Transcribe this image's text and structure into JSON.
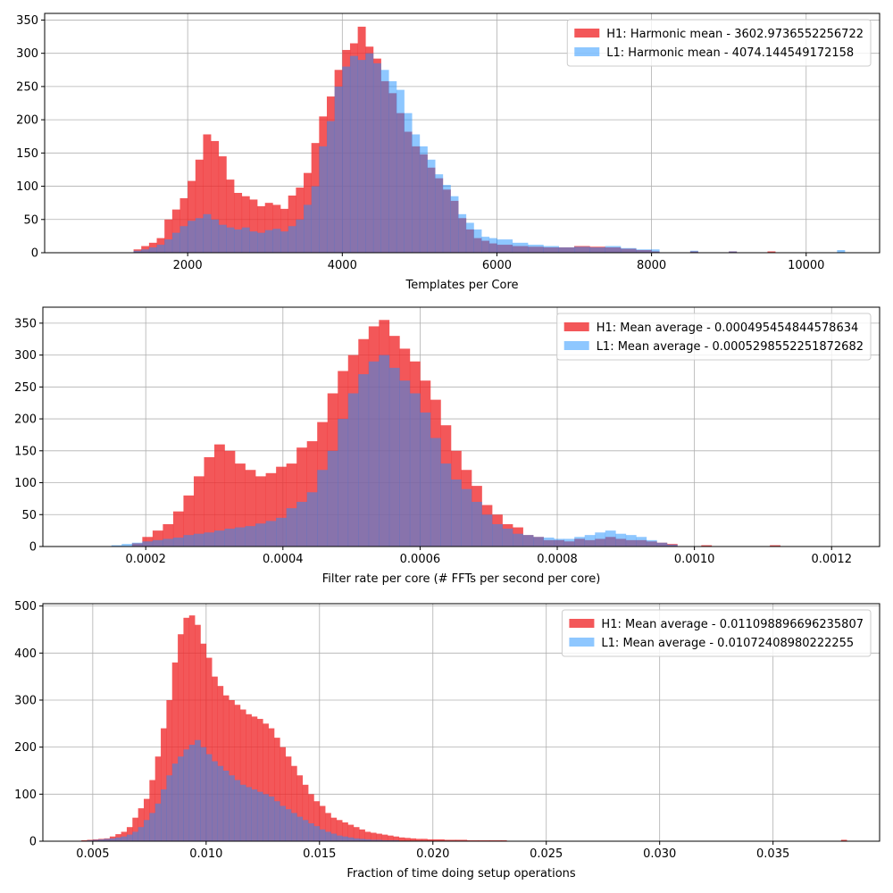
{
  "chart_data": [
    {
      "type": "bar",
      "xlabel": "Templates per Core",
      "ylabel": "",
      "xlim": [
        150,
        10950
      ],
      "ylim": [
        0,
        360
      ],
      "xticks": [
        2000,
        4000,
        6000,
        8000,
        10000
      ],
      "yticks": [
        0,
        50,
        100,
        150,
        200,
        250,
        300,
        350
      ],
      "xtick_labels": [
        "2000",
        "4000",
        "6000",
        "8000",
        "10000"
      ],
      "ytick_labels": [
        "0",
        "50",
        "100",
        "150",
        "200",
        "250",
        "300",
        "350"
      ],
      "grid": true,
      "legend_position": "top-right",
      "series": [
        {
          "name": "H1: Harmonic mean  - 3602.9736552256722",
          "color": "#f0282a",
          "alpha": 0.78,
          "x": [
            1300,
            1400,
            1500,
            1600,
            1700,
            1800,
            1900,
            2000,
            2100,
            2200,
            2300,
            2400,
            2500,
            2600,
            2700,
            2800,
            2900,
            3000,
            3100,
            3200,
            3300,
            3400,
            3500,
            3600,
            3700,
            3800,
            3900,
            4000,
            4100,
            4200,
            4300,
            4400,
            4500,
            4600,
            4700,
            4800,
            4900,
            5000,
            5100,
            5200,
            5300,
            5400,
            5500,
            5600,
            5700,
            5800,
            5900,
            6000,
            6200,
            6400,
            6600,
            6800,
            7000,
            7200,
            7400,
            7600,
            7800,
            8000,
            8500,
            9000,
            9500
          ],
          "values": [
            5,
            10,
            15,
            22,
            50,
            65,
            82,
            108,
            140,
            178,
            168,
            145,
            110,
            90,
            85,
            80,
            70,
            75,
            72,
            66,
            86,
            98,
            120,
            165,
            205,
            235,
            275,
            305,
            315,
            340,
            310,
            292,
            258,
            240,
            210,
            182,
            160,
            148,
            128,
            112,
            95,
            78,
            52,
            35,
            22,
            18,
            14,
            12,
            10,
            9,
            8,
            8,
            10,
            9,
            8,
            6,
            4,
            2,
            2,
            2,
            2
          ]
        },
        {
          "name": "L1: Harmonic mean  - 4074.144549172158",
          "color": "#1e90ff",
          "alpha": 0.5,
          "x": [
            1300,
            1400,
            1500,
            1600,
            1700,
            1800,
            1900,
            2000,
            2100,
            2200,
            2300,
            2400,
            2500,
            2600,
            2700,
            2800,
            2900,
            3000,
            3100,
            3200,
            3300,
            3400,
            3500,
            3600,
            3700,
            3800,
            3900,
            4000,
            4100,
            4200,
            4300,
            4400,
            4500,
            4600,
            4700,
            4800,
            4900,
            5000,
            5100,
            5200,
            5300,
            5400,
            5500,
            5600,
            5700,
            5800,
            5900,
            6000,
            6200,
            6400,
            6600,
            6800,
            7000,
            7200,
            7400,
            7600,
            7800,
            8000,
            8500,
            9000,
            10400
          ],
          "values": [
            3,
            5,
            8,
            12,
            20,
            30,
            40,
            48,
            52,
            58,
            50,
            42,
            38,
            35,
            38,
            32,
            30,
            34,
            36,
            32,
            40,
            50,
            72,
            100,
            160,
            198,
            250,
            280,
            296,
            290,
            300,
            285,
            275,
            258,
            245,
            210,
            178,
            160,
            140,
            118,
            102,
            85,
            58,
            45,
            35,
            24,
            22,
            20,
            15,
            12,
            10,
            8,
            9,
            8,
            10,
            7,
            5,
            5,
            3,
            2,
            4
          ]
        }
      ]
    },
    {
      "type": "bar",
      "xlabel": "Filter rate per core (# FFTs per second per core)",
      "ylabel": "",
      "xlim": [
        5e-05,
        0.00127
      ],
      "ylim": [
        0,
        375
      ],
      "xticks": [
        0.0002,
        0.0004,
        0.0006,
        0.0008,
        0.001,
        0.0012
      ],
      "yticks": [
        0,
        50,
        100,
        150,
        200,
        250,
        300,
        350
      ],
      "xtick_labels": [
        "0.0002",
        "0.0004",
        "0.0006",
        "0.0008",
        "0.0010",
        "0.0012"
      ],
      "ytick_labels": [
        "0",
        "50",
        "100",
        "150",
        "200",
        "250",
        "300",
        "350"
      ],
      "grid": true,
      "legend_position": "top-right",
      "series": [
        {
          "name": "H1: Mean average - 0.000495454844578634",
          "color": "#f0282a",
          "alpha": 0.78,
          "x": [
            0.00018,
            0.000195,
            0.00021,
            0.000225,
            0.00024,
            0.000255,
            0.00027,
            0.000285,
            0.0003,
            0.000315,
            0.00033,
            0.000345,
            0.00036,
            0.000375,
            0.00039,
            0.000405,
            0.00042,
            0.000435,
            0.00045,
            0.000465,
            0.00048,
            0.000495,
            0.00051,
            0.000525,
            0.00054,
            0.000555,
            0.00057,
            0.000585,
            0.0006,
            0.000615,
            0.00063,
            0.000645,
            0.00066,
            0.000675,
            0.00069,
            0.000705,
            0.00072,
            0.000735,
            0.00075,
            0.000765,
            0.00078,
            0.000795,
            0.00081,
            0.000825,
            0.00084,
            0.000855,
            0.00087,
            0.000885,
            0.0009,
            0.000915,
            0.00093,
            0.000945,
            0.00096,
            0.00101,
            0.00111
          ],
          "values": [
            5,
            15,
            25,
            35,
            55,
            80,
            110,
            140,
            160,
            150,
            130,
            120,
            110,
            115,
            125,
            130,
            155,
            165,
            195,
            240,
            275,
            300,
            325,
            345,
            355,
            330,
            310,
            290,
            260,
            230,
            190,
            150,
            120,
            95,
            65,
            50,
            35,
            30,
            18,
            15,
            10,
            10,
            8,
            12,
            10,
            12,
            15,
            12,
            10,
            10,
            8,
            6,
            4,
            2,
            2
          ]
        },
        {
          "name": "L1: Mean average - 0.0005298552251872682",
          "color": "#1e90ff",
          "alpha": 0.5,
          "x": [
            0.00015,
            0.000165,
            0.00018,
            0.000195,
            0.00021,
            0.000225,
            0.00024,
            0.000255,
            0.00027,
            0.000285,
            0.0003,
            0.000315,
            0.00033,
            0.000345,
            0.00036,
            0.000375,
            0.00039,
            0.000405,
            0.00042,
            0.000435,
            0.00045,
            0.000465,
            0.00048,
            0.000495,
            0.00051,
            0.000525,
            0.00054,
            0.000555,
            0.00057,
            0.000585,
            0.0006,
            0.000615,
            0.00063,
            0.000645,
            0.00066,
            0.000675,
            0.00069,
            0.000705,
            0.00072,
            0.000735,
            0.00075,
            0.000765,
            0.00078,
            0.000795,
            0.00081,
            0.000825,
            0.00084,
            0.000855,
            0.00087,
            0.000885,
            0.0009,
            0.000915,
            0.00093,
            0.000945,
            0.00096
          ],
          "values": [
            2,
            4,
            6,
            8,
            10,
            12,
            14,
            18,
            20,
            22,
            25,
            28,
            30,
            32,
            36,
            40,
            45,
            60,
            70,
            85,
            120,
            150,
            200,
            240,
            270,
            290,
            300,
            280,
            260,
            240,
            210,
            170,
            130,
            105,
            90,
            70,
            50,
            35,
            28,
            20,
            18,
            15,
            14,
            12,
            12,
            15,
            18,
            22,
            25,
            20,
            18,
            15,
            10,
            6,
            3
          ]
        }
      ]
    },
    {
      "type": "bar",
      "xlabel": "Fraction of time doing setup operations",
      "ylabel": "",
      "xlim": [
        0.0028,
        0.0397
      ],
      "ylim": [
        0,
        505
      ],
      "xticks": [
        0.005,
        0.01,
        0.015,
        0.02,
        0.025,
        0.03,
        0.035
      ],
      "yticks": [
        0,
        100,
        200,
        300,
        400,
        500
      ],
      "xtick_labels": [
        "0.005",
        "0.010",
        "0.015",
        "0.020",
        "0.025",
        "0.030",
        "0.035"
      ],
      "ytick_labels": [
        "0",
        "100",
        "200",
        "300",
        "400",
        "500"
      ],
      "grid": true,
      "legend_position": "top-right",
      "series": [
        {
          "name": "H1: Mean average - 0.011098896696235807",
          "color": "#f0282a",
          "alpha": 0.78,
          "x": [
            0.0045,
            0.00475,
            0.005,
            0.00525,
            0.0055,
            0.00575,
            0.006,
            0.00625,
            0.0065,
            0.00675,
            0.007,
            0.00725,
            0.0075,
            0.00775,
            0.008,
            0.00825,
            0.0085,
            0.00875,
            0.009,
            0.00925,
            0.0095,
            0.00975,
            0.01,
            0.01025,
            0.0105,
            0.01075,
            0.011,
            0.01125,
            0.0115,
            0.01175,
            0.012,
            0.01225,
            0.0125,
            0.01275,
            0.013,
            0.01325,
            0.0135,
            0.01375,
            0.014,
            0.01425,
            0.0145,
            0.01475,
            0.015,
            0.01525,
            0.0155,
            0.01575,
            0.016,
            0.01625,
            0.0165,
            0.01675,
            0.017,
            0.01725,
            0.0175,
            0.01775,
            0.018,
            0.01825,
            0.0185,
            0.01875,
            0.019,
            0.01925,
            0.0195,
            0.01975,
            0.02,
            0.0205,
            0.021,
            0.0215,
            0.022,
            0.0225,
            0.023,
            0.038
          ],
          "values": [
            2,
            3,
            4,
            5,
            6,
            10,
            15,
            20,
            30,
            50,
            70,
            90,
            130,
            180,
            240,
            300,
            380,
            440,
            475,
            480,
            460,
            420,
            390,
            350,
            330,
            310,
            300,
            290,
            280,
            270,
            265,
            260,
            250,
            240,
            220,
            200,
            180,
            160,
            140,
            120,
            100,
            85,
            75,
            60,
            50,
            45,
            40,
            35,
            30,
            25,
            20,
            18,
            16,
            14,
            12,
            10,
            8,
            7,
            6,
            5,
            5,
            4,
            4,
            3,
            3,
            2,
            2,
            2,
            2,
            3
          ]
        },
        {
          "name": "L1: Mean average - 0.01072408980222255",
          "color": "#1e90ff",
          "alpha": 0.5,
          "x": [
            0.0045,
            0.00475,
            0.005,
            0.00525,
            0.0055,
            0.00575,
            0.006,
            0.00625,
            0.0065,
            0.00675,
            0.007,
            0.00725,
            0.0075,
            0.00775,
            0.008,
            0.00825,
            0.0085,
            0.00875,
            0.009,
            0.00925,
            0.0095,
            0.00975,
            0.01,
            0.01025,
            0.0105,
            0.01075,
            0.011,
            0.01125,
            0.0115,
            0.01175,
            0.012,
            0.01225,
            0.0125,
            0.01275,
            0.013,
            0.01325,
            0.0135,
            0.01375,
            0.014,
            0.01425,
            0.0145,
            0.01475,
            0.015,
            0.01525,
            0.0155,
            0.01575,
            0.016,
            0.01625,
            0.0165,
            0.01675,
            0.017,
            0.01725,
            0.0175,
            0.01775,
            0.018,
            0.01825,
            0.0185,
            0.01875,
            0.019,
            0.01925,
            0.0195,
            0.01975,
            0.02,
            0.0205,
            0.021
          ],
          "values": [
            1,
            2,
            3,
            4,
            5,
            6,
            8,
            10,
            14,
            20,
            30,
            45,
            60,
            80,
            110,
            140,
            165,
            180,
            195,
            205,
            215,
            200,
            185,
            170,
            160,
            150,
            140,
            130,
            120,
            115,
            110,
            105,
            100,
            95,
            85,
            75,
            68,
            60,
            52,
            45,
            38,
            32,
            25,
            20,
            16,
            12,
            10,
            8,
            6,
            5,
            4,
            3,
            3,
            2,
            2,
            2,
            1,
            1,
            1,
            1,
            1,
            1,
            1,
            1,
            1
          ]
        }
      ]
    }
  ]
}
